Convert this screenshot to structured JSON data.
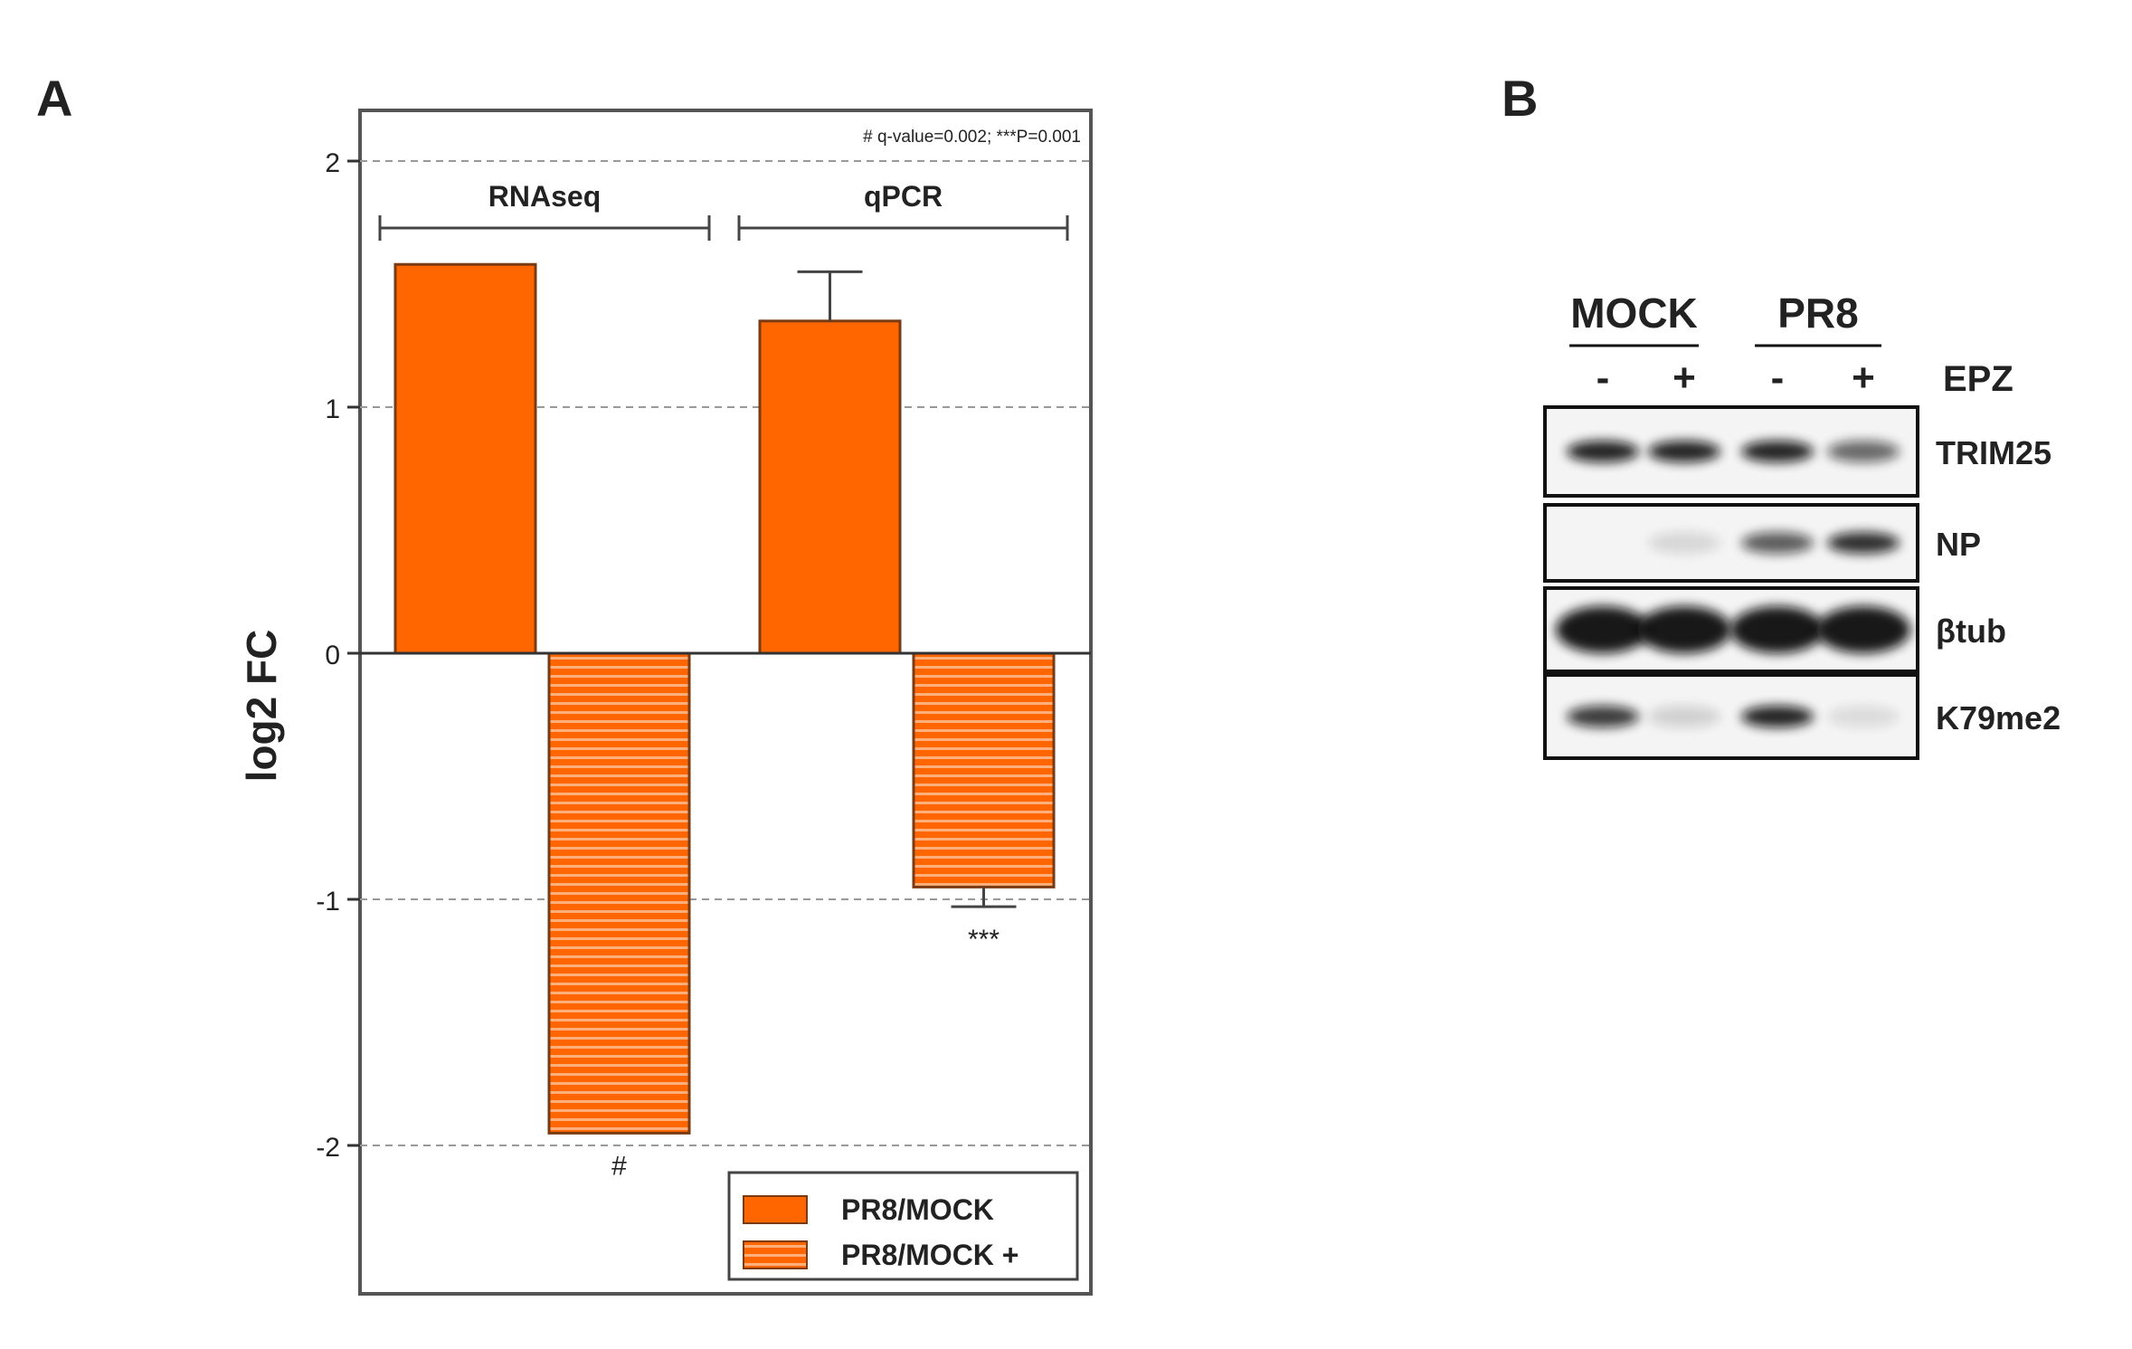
{
  "panels": {
    "a_label": "A",
    "b_label": "B"
  },
  "chart_data": {
    "type": "bar",
    "ylabel": "log2 FC",
    "xlabel": "",
    "ylim": [
      -2.6,
      2.2
    ],
    "yticks": [
      2,
      1,
      0,
      -1,
      -2
    ],
    "ytick_labels": [
      "2",
      "1",
      "0",
      "-1",
      "-2"
    ],
    "grid": true,
    "annotation_top": "# q-value=0.002; ***P=0.001",
    "groups": [
      {
        "label": "RNAseq",
        "values": [
          1.58,
          -1.95
        ],
        "errors": [
          null,
          null
        ],
        "marks": [
          "",
          "#"
        ]
      },
      {
        "label": "qPCR",
        "values": [
          1.35,
          -0.95
        ],
        "errors": [
          0.2,
          0.08
        ],
        "marks": [
          "",
          "***"
        ]
      }
    ],
    "series": [
      {
        "name": "PR8/MOCK",
        "pattern": "solid"
      },
      {
        "name": "PR8/MOCK +",
        "pattern": "striped"
      }
    ],
    "legend_position": "bottom-right",
    "colors": {
      "bar": "#ff6600",
      "stripe": "#ffb07a",
      "edge": "#7a3a12"
    }
  },
  "blot": {
    "groups": [
      {
        "label": "MOCK",
        "lanes": [
          "-",
          "+"
        ]
      },
      {
        "label": "PR8",
        "lanes": [
          "-",
          "+"
        ]
      }
    ],
    "treatment": "EPZ",
    "rows": [
      {
        "label": "TRIM25",
        "intensities": [
          0.9,
          0.9,
          0.9,
          0.6
        ]
      },
      {
        "label": "NP",
        "intensities": [
          0.0,
          0.12,
          0.65,
          0.85
        ]
      },
      {
        "label": "βtub",
        "intensities": [
          0.95,
          0.95,
          0.95,
          0.95
        ]
      },
      {
        "label": "K79me2",
        "intensities": [
          0.8,
          0.15,
          0.9,
          0.1
        ]
      }
    ]
  }
}
